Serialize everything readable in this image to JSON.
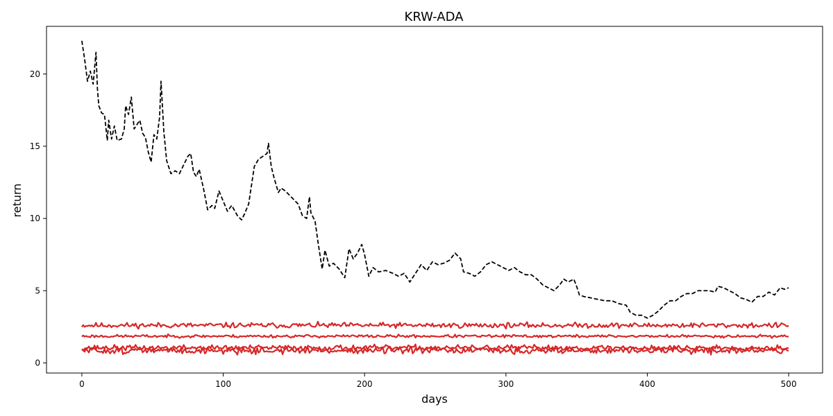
{
  "chart_data": {
    "type": "line",
    "title": "KRW-ADA",
    "xlabel": "days",
    "ylabel": "return",
    "xlim": [
      -25,
      524
    ],
    "ylim": [
      -0.7,
      23.3
    ],
    "xticks": [
      0,
      100,
      200,
      300,
      400,
      500
    ],
    "yticks": [
      0,
      5,
      10,
      15,
      20
    ],
    "grid": false,
    "legend": "none",
    "series": [
      {
        "style": "dashed",
        "color": "#000000",
        "points": [
          [
            0,
            22.3
          ],
          [
            2,
            21.0
          ],
          [
            4,
            19.5
          ],
          [
            6,
            20.2
          ],
          [
            8,
            19.3
          ],
          [
            10,
            21.5
          ],
          [
            11,
            19.0
          ],
          [
            12,
            17.8
          ],
          [
            14,
            17.3
          ],
          [
            16,
            17.2
          ],
          [
            18,
            15.4
          ],
          [
            19,
            16.8
          ],
          [
            21,
            15.5
          ],
          [
            23,
            16.4
          ],
          [
            25,
            15.4
          ],
          [
            28,
            15.5
          ],
          [
            30,
            16.2
          ],
          [
            31,
            17.8
          ],
          [
            33,
            17.2
          ],
          [
            35,
            18.4
          ],
          [
            37,
            16.2
          ],
          [
            39,
            16.5
          ],
          [
            41,
            16.8
          ],
          [
            43,
            15.9
          ],
          [
            45,
            15.6
          ],
          [
            47,
            14.6
          ],
          [
            49,
            13.9
          ],
          [
            51,
            15.8
          ],
          [
            53,
            15.5
          ],
          [
            55,
            17.0
          ],
          [
            56,
            19.5
          ],
          [
            58,
            16.0
          ],
          [
            60,
            14.0
          ],
          [
            63,
            13.1
          ],
          [
            66,
            13.3
          ],
          [
            69,
            13.1
          ],
          [
            72,
            13.7
          ],
          [
            75,
            14.3
          ],
          [
            77,
            14.5
          ],
          [
            79,
            13.2
          ],
          [
            81,
            12.9
          ],
          [
            83,
            13.4
          ],
          [
            86,
            12.1
          ],
          [
            89,
            10.6
          ],
          [
            92,
            10.9
          ],
          [
            94,
            10.7
          ],
          [
            97,
            11.9
          ],
          [
            100,
            11.2
          ],
          [
            103,
            10.5
          ],
          [
            106,
            10.9
          ],
          [
            110,
            10.2
          ],
          [
            113,
            9.9
          ],
          [
            115,
            10.3
          ],
          [
            118,
            11.0
          ],
          [
            120,
            12.3
          ],
          [
            122,
            13.6
          ],
          [
            125,
            14.1
          ],
          [
            128,
            14.3
          ],
          [
            131,
            14.5
          ],
          [
            132,
            15.2
          ],
          [
            134,
            13.6
          ],
          [
            136,
            12.8
          ],
          [
            139,
            11.8
          ],
          [
            141,
            12.1
          ],
          [
            144,
            11.9
          ],
          [
            147,
            11.6
          ],
          [
            150,
            11.3
          ],
          [
            153,
            11.0
          ],
          [
            156,
            10.2
          ],
          [
            159,
            10.0
          ],
          [
            161,
            11.5
          ],
          [
            162,
            10.4
          ],
          [
            165,
            9.8
          ],
          [
            167,
            8.4
          ],
          [
            170,
            6.5
          ],
          [
            172,
            7.8
          ],
          [
            175,
            6.7
          ],
          [
            178,
            6.9
          ],
          [
            182,
            6.5
          ],
          [
            186,
            5.9
          ],
          [
            189,
            7.9
          ],
          [
            192,
            7.2
          ],
          [
            195,
            7.6
          ],
          [
            198,
            8.2
          ],
          [
            200,
            7.5
          ],
          [
            203,
            6.0
          ],
          [
            206,
            6.6
          ],
          [
            210,
            6.3
          ],
          [
            215,
            6.4
          ],
          [
            220,
            6.2
          ],
          [
            224,
            6.0
          ],
          [
            228,
            6.2
          ],
          [
            232,
            5.6
          ],
          [
            236,
            6.2
          ],
          [
            240,
            6.8
          ],
          [
            244,
            6.4
          ],
          [
            248,
            7.0
          ],
          [
            252,
            6.8
          ],
          [
            256,
            6.9
          ],
          [
            260,
            7.1
          ],
          [
            264,
            7.6
          ],
          [
            268,
            7.2
          ],
          [
            270,
            6.3
          ],
          [
            274,
            6.2
          ],
          [
            278,
            6.0
          ],
          [
            282,
            6.3
          ],
          [
            286,
            6.8
          ],
          [
            290,
            7.0
          ],
          [
            294,
            6.8
          ],
          [
            298,
            6.6
          ],
          [
            302,
            6.4
          ],
          [
            306,
            6.6
          ],
          [
            310,
            6.3
          ],
          [
            314,
            6.1
          ],
          [
            318,
            6.1
          ],
          [
            322,
            5.8
          ],
          [
            326,
            5.4
          ],
          [
            330,
            5.2
          ],
          [
            334,
            5.0
          ],
          [
            338,
            5.4
          ],
          [
            341,
            5.8
          ],
          [
            344,
            5.6
          ],
          [
            348,
            5.8
          ],
          [
            350,
            5.3
          ],
          [
            352,
            4.7
          ],
          [
            355,
            4.6
          ],
          [
            360,
            4.5
          ],
          [
            365,
            4.4
          ],
          [
            370,
            4.3
          ],
          [
            375,
            4.3
          ],
          [
            380,
            4.1
          ],
          [
            385,
            4.0
          ],
          [
            388,
            3.5
          ],
          [
            392,
            3.3
          ],
          [
            396,
            3.3
          ],
          [
            400,
            3.1
          ],
          [
            404,
            3.3
          ],
          [
            408,
            3.6
          ],
          [
            412,
            4.0
          ],
          [
            416,
            4.3
          ],
          [
            420,
            4.3
          ],
          [
            424,
            4.6
          ],
          [
            428,
            4.8
          ],
          [
            432,
            4.8
          ],
          [
            436,
            5.0
          ],
          [
            440,
            5.0
          ],
          [
            444,
            5.0
          ],
          [
            448,
            4.9
          ],
          [
            450,
            5.3
          ],
          [
            454,
            5.2
          ],
          [
            458,
            5.0
          ],
          [
            462,
            4.8
          ],
          [
            466,
            4.5
          ],
          [
            470,
            4.4
          ],
          [
            474,
            4.2
          ],
          [
            478,
            4.6
          ],
          [
            482,
            4.6
          ],
          [
            486,
            4.9
          ],
          [
            490,
            4.7
          ],
          [
            494,
            5.2
          ],
          [
            497,
            5.1
          ],
          [
            500,
            5.2
          ]
        ]
      },
      {
        "style": "solid",
        "color": "#d62728",
        "level": 2.6,
        "noise": 0.09,
        "seed": 11
      },
      {
        "style": "solid",
        "color": "#d62728",
        "level": 1.85,
        "noise": 0.05,
        "seed": 23
      },
      {
        "style": "solid",
        "color": "#d62728",
        "level": 1.05,
        "noise": 0.09,
        "seed": 37
      },
      {
        "style": "solid",
        "color": "#d62728",
        "level": 0.85,
        "noise": 0.11,
        "seed": 51
      }
    ]
  }
}
